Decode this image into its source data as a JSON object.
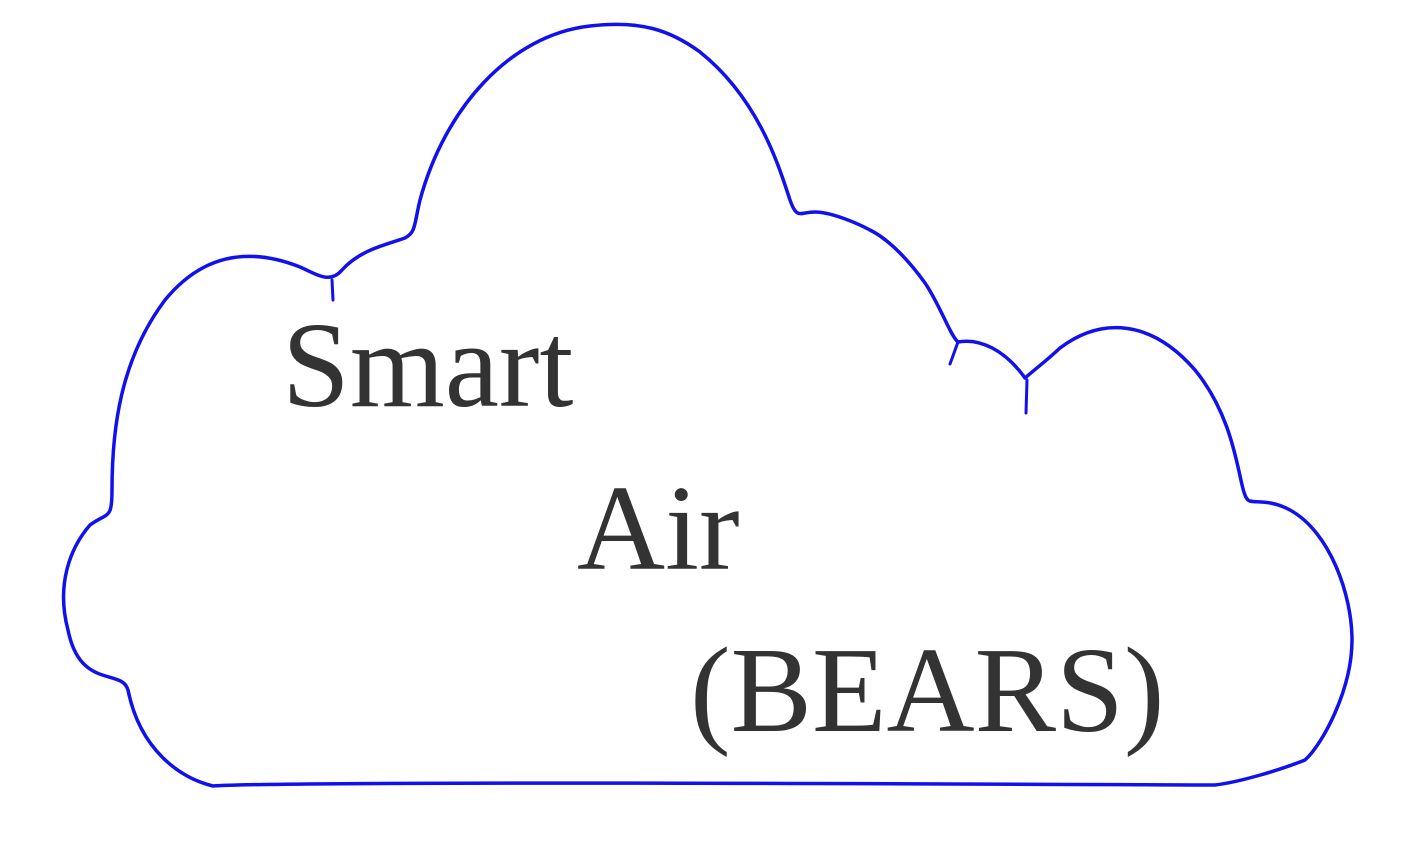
{
  "diagram": {
    "text_lines": [
      "Smart",
      "Air",
      "(BEARS)"
    ],
    "colors": {
      "outline": "#1111ee",
      "text": "#333333",
      "background": "#ffffff"
    },
    "shape": "cloud"
  }
}
